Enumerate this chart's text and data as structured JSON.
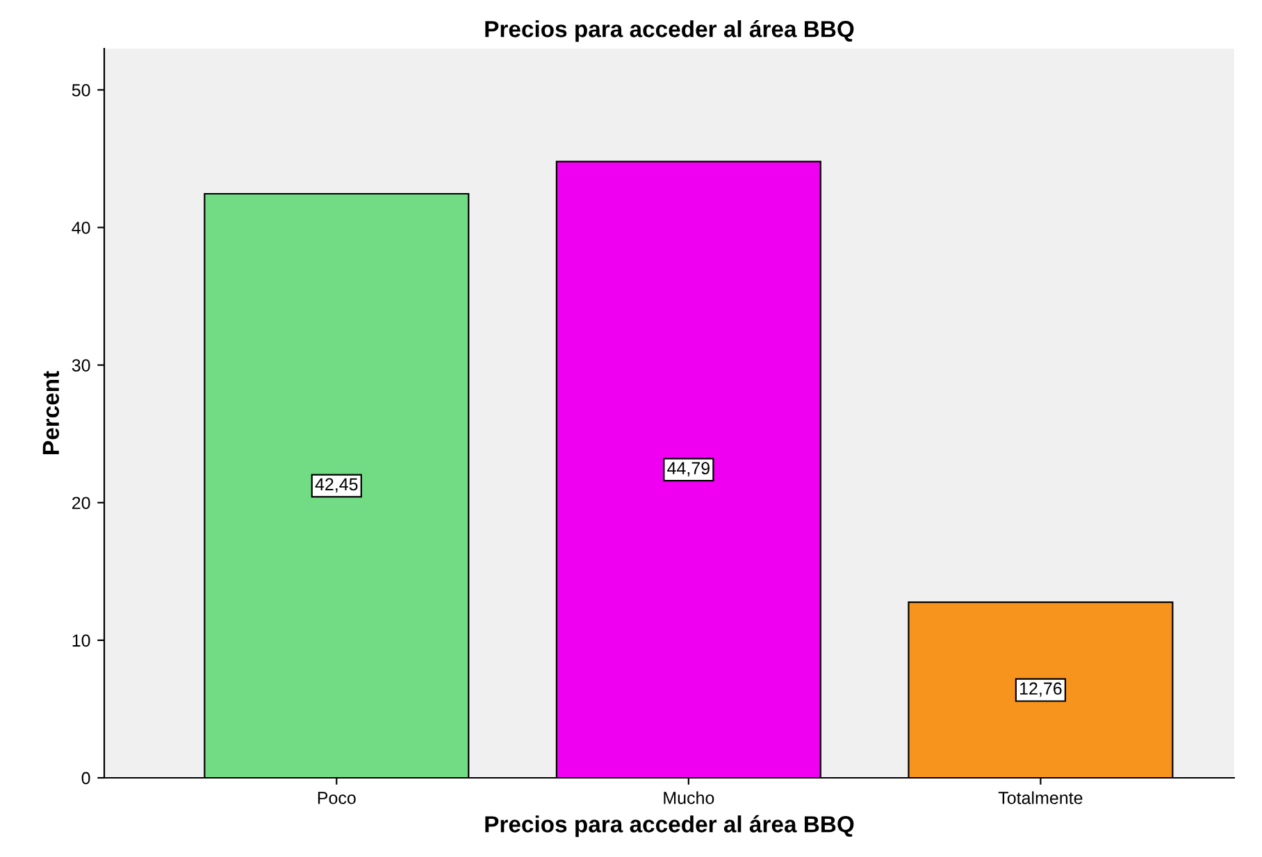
{
  "chart_data": {
    "type": "bar",
    "title": "Precios para acceder al área BBQ",
    "xlabel": "Precios para acceder al área BBQ",
    "ylabel": "Percent",
    "categories": [
      "Poco",
      "Mucho",
      "Totalmente"
    ],
    "values": [
      42.45,
      44.79,
      12.76
    ],
    "colors": [
      "#72dc84",
      "#f000f0",
      "#f7941d"
    ],
    "value_labels": [
      "42,45",
      "44,79",
      "12,76"
    ],
    "ylim": [
      0,
      53
    ],
    "yticks": [
      0,
      10,
      20,
      30,
      40,
      50
    ],
    "grid": false
  }
}
